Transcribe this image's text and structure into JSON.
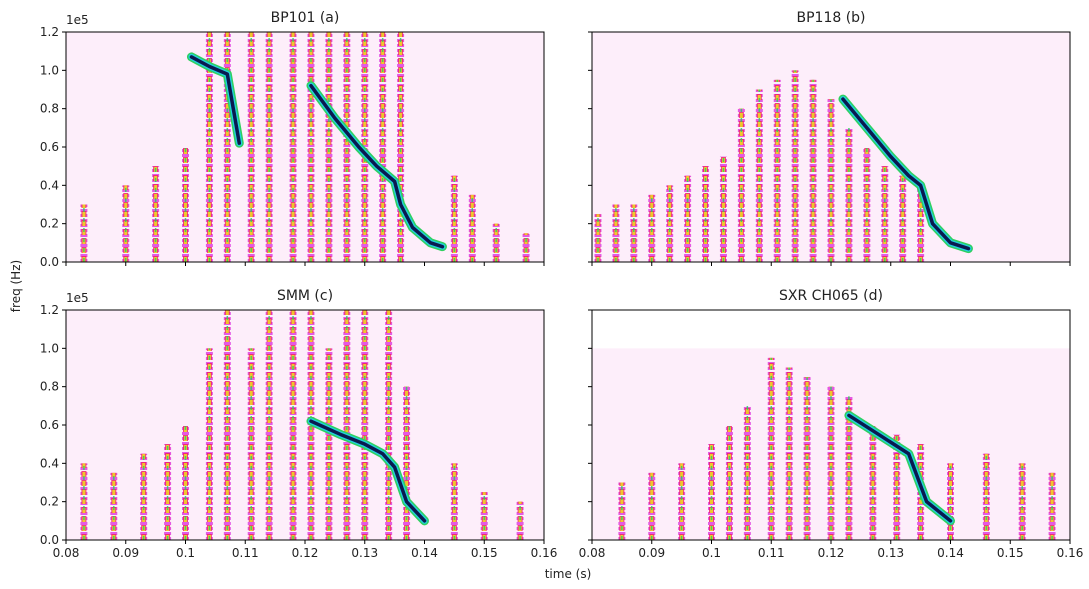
{
  "figure": {
    "xlabel": "time (s)",
    "ylabel": "freq (Hz)",
    "y_offset_label": "1e5"
  },
  "chart_data": [
    {
      "type": "spectrogram",
      "title": "BP101 (a)",
      "xlim": [
        0.08,
        0.16
      ],
      "ylim": [
        0,
        1.2
      ],
      "fill_top": 1.2,
      "xticks": [
        0.08,
        0.09,
        0.1,
        0.11,
        0.12,
        0.13,
        0.14,
        0.15,
        0.16
      ],
      "yticks": [
        {
          "value": 0,
          "label": "0.0"
        },
        0.2,
        0.4,
        0.6,
        0.8,
        {
          "value": 1,
          "label": "1.0"
        },
        1.2
      ],
      "bursts": {
        "x": [
          0.083,
          0.09,
          0.095,
          0.1,
          0.104,
          0.107,
          0.111,
          0.114,
          0.118,
          0.121,
          0.124,
          0.127,
          0.13,
          0.133,
          0.136,
          0.145,
          0.148,
          0.152,
          0.157
        ],
        "values": [
          0.3,
          0.4,
          0.5,
          0.6,
          1.2,
          1.2,
          1.2,
          1.2,
          1.2,
          1.2,
          1.2,
          1.2,
          1.2,
          1.2,
          1.2,
          0.45,
          0.35,
          0.2,
          0.15
        ]
      },
      "traces": [
        {
          "x": [
            0.101,
            0.104,
            0.107,
            0.108,
            0.109
          ],
          "values": [
            1.07,
            1.02,
            0.98,
            0.8,
            0.62
          ]
        },
        {
          "x": [
            0.121,
            0.125,
            0.129,
            0.132,
            0.135,
            0.136,
            0.138,
            0.141,
            0.143
          ],
          "values": [
            0.92,
            0.75,
            0.6,
            0.5,
            0.42,
            0.3,
            0.18,
            0.1,
            0.08
          ]
        }
      ]
    },
    {
      "type": "spectrogram",
      "title": "BP118 (b)",
      "xlim": [
        0.08,
        0.16
      ],
      "ylim": [
        0,
        1.2
      ],
      "fill_top": 1.2,
      "xticks": [
        0.08,
        0.09,
        0.1,
        0.11,
        0.12,
        0.13,
        0.14,
        0.15,
        0.16
      ],
      "yticks": [
        {
          "value": 0,
          "label": "0.0"
        },
        0.2,
        0.4,
        0.6,
        0.8,
        {
          "value": 1,
          "label": "1.0"
        },
        1.2
      ],
      "bursts": {
        "x": [
          0.081,
          0.084,
          0.087,
          0.09,
          0.093,
          0.096,
          0.099,
          0.102,
          0.105,
          0.108,
          0.111,
          0.114,
          0.117,
          0.12,
          0.123,
          0.126,
          0.129,
          0.132,
          0.135
        ],
        "values": [
          0.25,
          0.3,
          0.3,
          0.35,
          0.4,
          0.45,
          0.5,
          0.55,
          0.8,
          0.9,
          0.95,
          1.0,
          0.95,
          0.85,
          0.7,
          0.6,
          0.5,
          0.45,
          0.4
        ]
      },
      "traces": [
        {
          "x": [
            0.122,
            0.126,
            0.13,
            0.133,
            0.135,
            0.137,
            0.14,
            0.143
          ],
          "values": [
            0.85,
            0.7,
            0.55,
            0.45,
            0.4,
            0.2,
            0.1,
            0.07
          ]
        }
      ]
    },
    {
      "type": "spectrogram",
      "title": "SMM (c)",
      "xlim": [
        0.08,
        0.16
      ],
      "ylim": [
        0,
        1.2
      ],
      "fill_top": 1.2,
      "xticks": [
        0.08,
        0.09,
        0.1,
        0.11,
        0.12,
        0.13,
        0.14,
        0.15,
        0.16
      ],
      "yticks": [
        {
          "value": 0,
          "label": "0.0"
        },
        0.2,
        0.4,
        0.6,
        0.8,
        {
          "value": 1,
          "label": "1.0"
        },
        1.2
      ],
      "bursts": {
        "x": [
          0.083,
          0.088,
          0.093,
          0.097,
          0.1,
          0.104,
          0.107,
          0.111,
          0.114,
          0.118,
          0.121,
          0.124,
          0.127,
          0.13,
          0.134,
          0.137,
          0.145,
          0.15,
          0.156
        ],
        "values": [
          0.4,
          0.35,
          0.45,
          0.5,
          0.6,
          1.0,
          1.2,
          1.0,
          1.2,
          1.2,
          1.2,
          1.0,
          1.2,
          1.2,
          1.2,
          0.8,
          0.4,
          0.25,
          0.2
        ]
      },
      "traces": [
        {
          "x": [
            0.121,
            0.126,
            0.13,
            0.133,
            0.135,
            0.137,
            0.14
          ],
          "values": [
            0.62,
            0.55,
            0.5,
            0.45,
            0.38,
            0.2,
            0.1
          ]
        }
      ]
    },
    {
      "type": "spectrogram",
      "title": "SXR CH065 (d)",
      "xlim": [
        0.08,
        0.16
      ],
      "ylim": [
        0,
        1.2
      ],
      "fill_top": 1.0,
      "xticks": [
        0.08,
        0.09,
        0.1,
        0.11,
        0.12,
        0.13,
        0.14,
        0.15,
        0.16
      ],
      "yticks": [
        {
          "value": 0,
          "label": "0.0"
        },
        0.2,
        0.4,
        0.6,
        0.8,
        {
          "value": 1,
          "label": "1.0"
        },
        1.2
      ],
      "bursts": {
        "x": [
          0.085,
          0.09,
          0.095,
          0.1,
          0.103,
          0.106,
          0.11,
          0.113,
          0.116,
          0.12,
          0.123,
          0.127,
          0.131,
          0.135,
          0.14,
          0.146,
          0.152,
          0.157
        ],
        "values": [
          0.3,
          0.35,
          0.4,
          0.5,
          0.6,
          0.7,
          0.95,
          0.9,
          0.85,
          0.8,
          0.75,
          0.6,
          0.55,
          0.5,
          0.4,
          0.45,
          0.4,
          0.35
        ]
      },
      "traces": [
        {
          "x": [
            0.123,
            0.128,
            0.133,
            0.136,
            0.14
          ],
          "values": [
            0.65,
            0.55,
            0.45,
            0.2,
            0.1
          ]
        }
      ]
    }
  ]
}
